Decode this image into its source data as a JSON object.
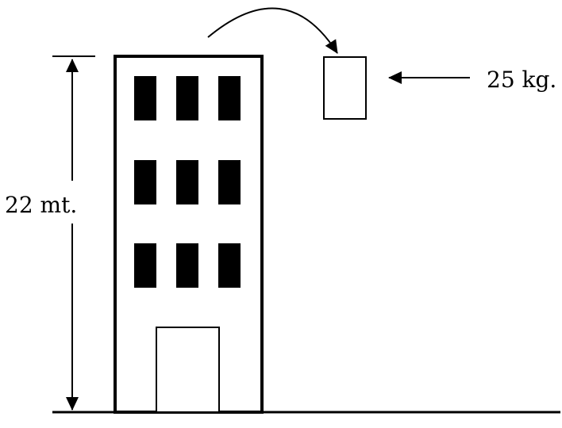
{
  "labels": {
    "height": "22 mt.",
    "mass": "25 kg."
  },
  "colors": {
    "line": "#000000",
    "window": "#000000",
    "background": "#ffffff"
  }
}
